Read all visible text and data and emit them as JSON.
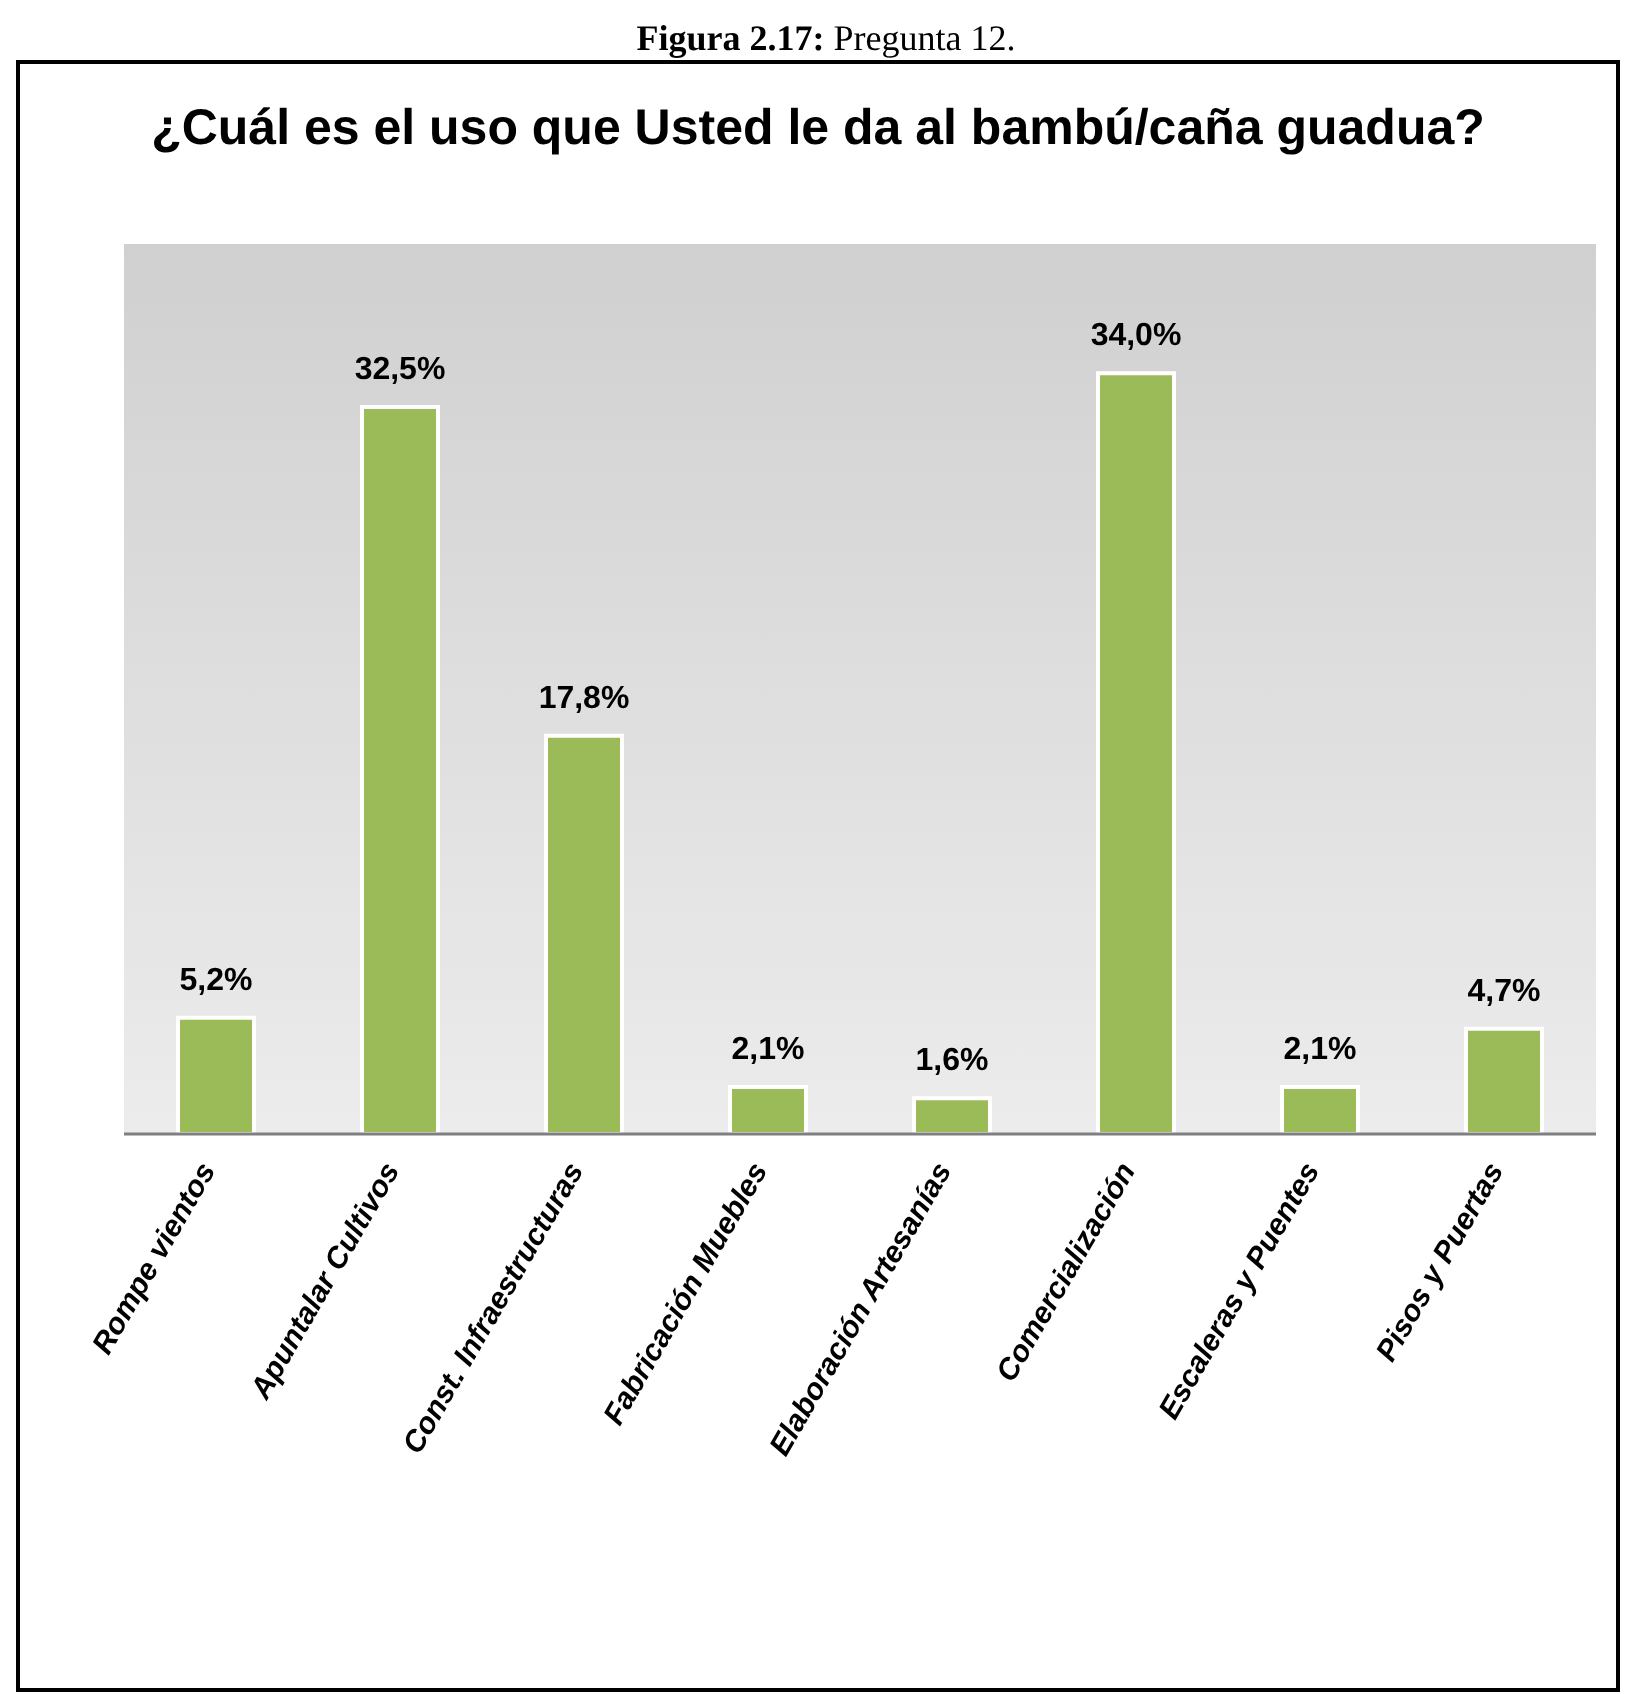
{
  "chart_data": {
    "type": "bar",
    "title": "¿Cuál es el uso que Usted le da al bambú/caña guadua?",
    "annotations": [
      "Figura 2.17: Pregunta 12."
    ],
    "categories": [
      "Rompe vientos",
      "Apuntalar Cultivos",
      "Const. Infraestructuras",
      "Fabricación Muebles",
      "Elaboración Artesanías",
      "Comercialización",
      "Escaleras y Puentes",
      "Pisos y Puertas"
    ],
    "values": [
      5.2,
      32.5,
      17.8,
      2.1,
      1.6,
      34.0,
      2.1,
      4.7
    ],
    "value_labels": [
      "5,2%",
      "32,5%",
      "17,8%",
      "2,1%",
      "1,6%",
      "34,0%",
      "2,1%",
      "4,7%"
    ],
    "color": "#9bbb59",
    "tick_labels": "x"
  }
}
